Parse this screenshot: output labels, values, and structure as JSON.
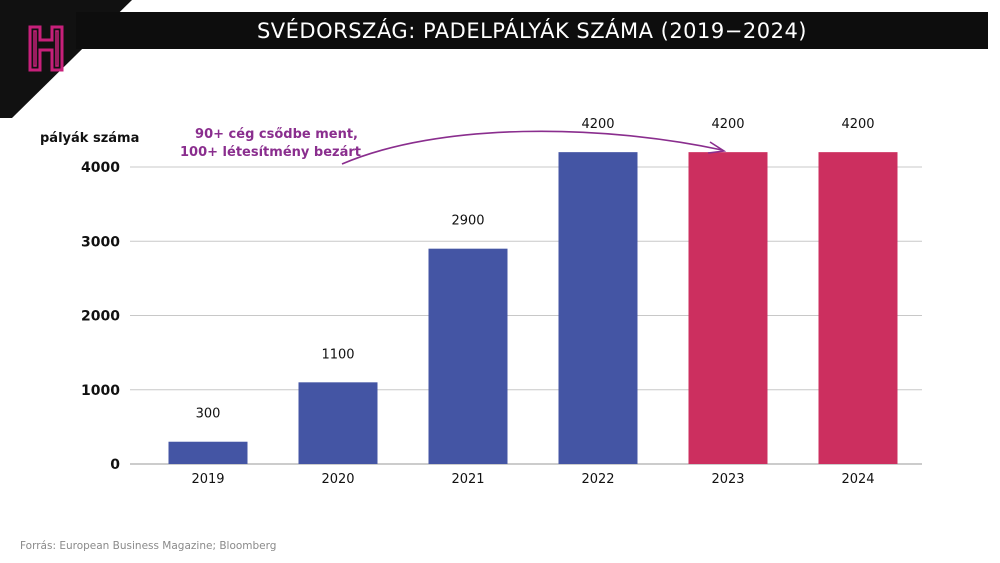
{
  "title": "SVÉDORSZÁG: PADELPÁLYÁK SZÁMA (2019−2024)",
  "source": "Forrás: European Business Magazine; Bloomberg",
  "annotation": {
    "line1": "90+ cég csődbe ment,",
    "line2": "100+ létesítmény bezárt",
    "color": "#8a2e8e"
  },
  "logo": {
    "icon": "h-letter-logo-icon",
    "color": "#c7207a",
    "background": "#111111"
  },
  "chart_data": {
    "type": "bar",
    "title": "SVÉDORSZÁG: PADELPÁLYÁK SZÁMA (2019−2024)",
    "xlabel": "",
    "ylabel": "pályák száma",
    "categories": [
      "2019",
      "2020",
      "2021",
      "2022",
      "2023",
      "2024"
    ],
    "values": [
      300,
      1100,
      2900,
      4200,
      4200,
      4200
    ],
    "value_labels": [
      "300",
      "1100",
      "2900",
      "4200",
      "4200",
      "4200"
    ],
    "bar_colors": [
      "#4455a4",
      "#4455a4",
      "#4455a4",
      "#4455a4",
      "#cc2f5f",
      "#cc2f5f"
    ],
    "yticks": [
      "0",
      "1000",
      "2000",
      "3000",
      "4000"
    ],
    "ytick_values": [
      0,
      1000,
      2000,
      3000,
      4000
    ],
    "ylim": [
      0,
      4000
    ],
    "grid": true,
    "legend": "none"
  }
}
